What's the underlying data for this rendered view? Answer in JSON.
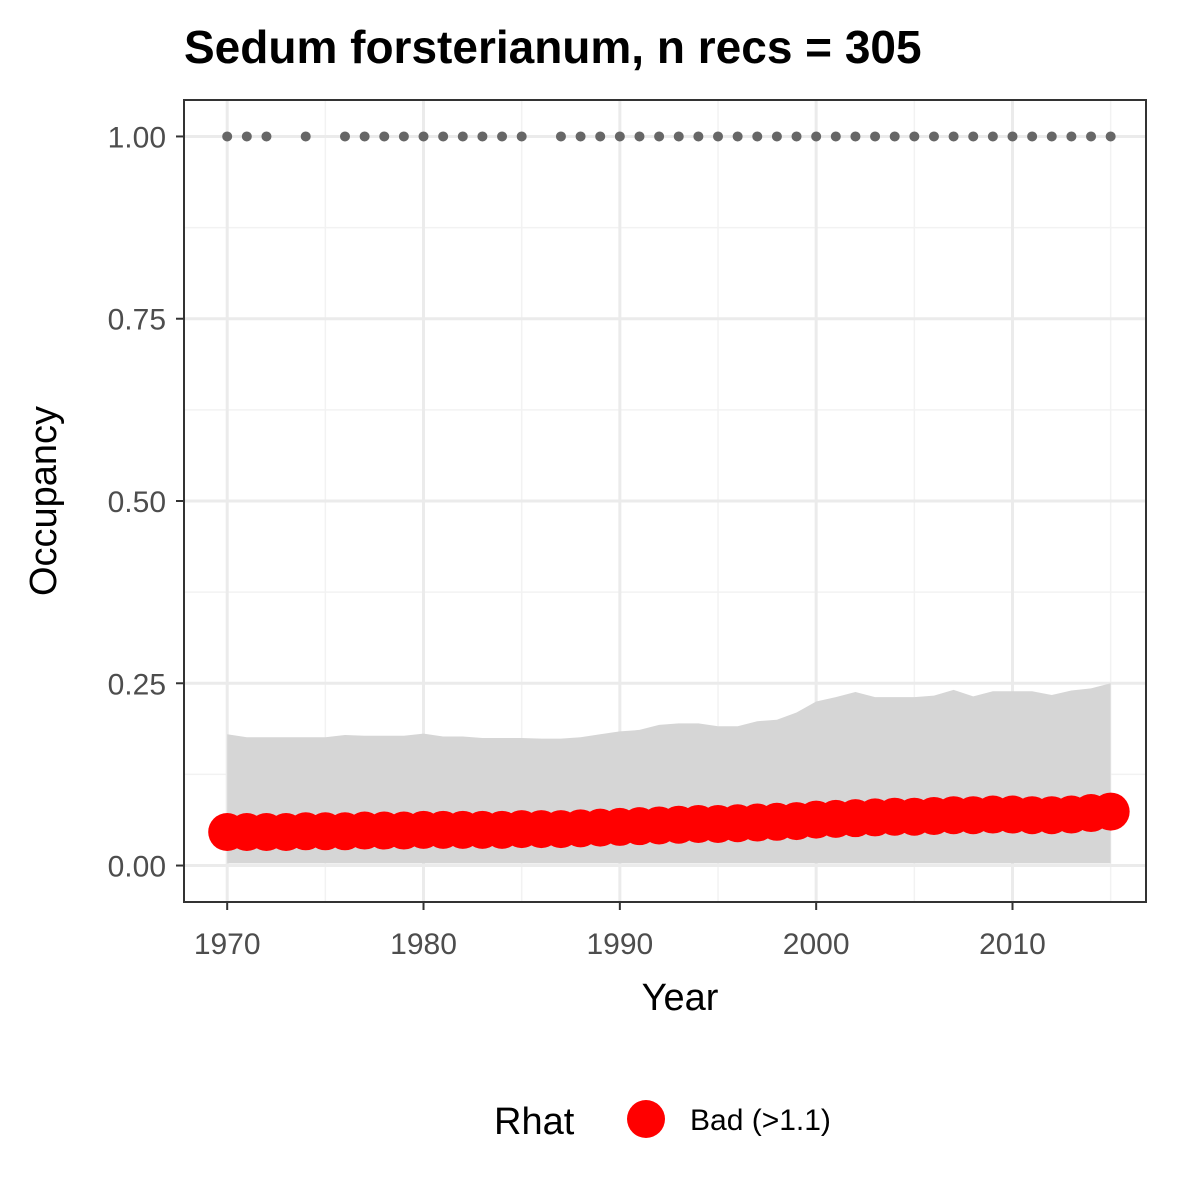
{
  "chart_data": {
    "type": "line",
    "title": "Sedum forsterianum, n recs = 305",
    "xlabel": "Year",
    "ylabel": "Occupancy",
    "xlim": [
      1967.8,
      2016.8
    ],
    "ylim": [
      -0.05,
      1.05
    ],
    "x_ticks": [
      1970,
      1980,
      1990,
      2000,
      2010
    ],
    "y_ticks": [
      0.0,
      0.25,
      0.5,
      0.75,
      1.0
    ],
    "y_tick_labels": [
      "0.00",
      "0.25",
      "0.50",
      "0.75",
      "1.00"
    ],
    "grid": true,
    "years": [
      1970,
      1971,
      1972,
      1973,
      1974,
      1975,
      1976,
      1977,
      1978,
      1979,
      1980,
      1981,
      1982,
      1983,
      1984,
      1985,
      1986,
      1987,
      1988,
      1989,
      1990,
      1991,
      1992,
      1993,
      1994,
      1995,
      1996,
      1997,
      1998,
      1999,
      2000,
      2001,
      2002,
      2003,
      2004,
      2005,
      2006,
      2007,
      2008,
      2009,
      2010,
      2011,
      2012,
      2013,
      2014,
      2015
    ],
    "series": [
      {
        "role": "occupancy_mean",
        "values": [
          0.046,
          0.046,
          0.046,
          0.046,
          0.047,
          0.047,
          0.047,
          0.048,
          0.048,
          0.048,
          0.049,
          0.049,
          0.049,
          0.049,
          0.049,
          0.05,
          0.05,
          0.05,
          0.051,
          0.052,
          0.053,
          0.054,
          0.055,
          0.056,
          0.057,
          0.057,
          0.058,
          0.059,
          0.06,
          0.061,
          0.063,
          0.064,
          0.065,
          0.066,
          0.067,
          0.067,
          0.068,
          0.069,
          0.069,
          0.07,
          0.07,
          0.069,
          0.069,
          0.07,
          0.072,
          0.074
        ],
        "color": "#ff0000"
      },
      {
        "role": "credible_interval_lower",
        "values": [
          0.003,
          0.003,
          0.003,
          0.003,
          0.003,
          0.003,
          0.003,
          0.003,
          0.003,
          0.003,
          0.003,
          0.003,
          0.003,
          0.003,
          0.003,
          0.003,
          0.003,
          0.003,
          0.003,
          0.003,
          0.003,
          0.003,
          0.003,
          0.003,
          0.003,
          0.003,
          0.003,
          0.003,
          0.003,
          0.003,
          0.003,
          0.003,
          0.003,
          0.003,
          0.003,
          0.003,
          0.003,
          0.003,
          0.003,
          0.003,
          0.003,
          0.003,
          0.003,
          0.003,
          0.003,
          0.003
        ],
        "color": "#d6d6d6"
      },
      {
        "role": "credible_interval_upper",
        "values": [
          0.18,
          0.176,
          0.176,
          0.176,
          0.176,
          0.176,
          0.179,
          0.178,
          0.178,
          0.178,
          0.181,
          0.177,
          0.177,
          0.175,
          0.175,
          0.175,
          0.174,
          0.174,
          0.176,
          0.18,
          0.184,
          0.186,
          0.193,
          0.195,
          0.195,
          0.191,
          0.191,
          0.198,
          0.2,
          0.21,
          0.225,
          0.231,
          0.238,
          0.231,
          0.231,
          0.231,
          0.233,
          0.241,
          0.232,
          0.239,
          0.239,
          0.239,
          0.234,
          0.24,
          0.243,
          0.25
        ],
        "color": "#d6d6d6"
      },
      {
        "role": "record_years",
        "years": [
          1970,
          1971,
          1972,
          1974,
          1976,
          1977,
          1978,
          1979,
          1980,
          1981,
          1982,
          1983,
          1984,
          1985,
          1987,
          1988,
          1989,
          1990,
          1991,
          1992,
          1993,
          1994,
          1995,
          1996,
          1997,
          1998,
          1999,
          2000,
          2001,
          2002,
          2003,
          2004,
          2005,
          2006,
          2007,
          2008,
          2009,
          2010,
          2011,
          2012,
          2013,
          2014,
          2015
        ],
        "value": 1.0,
        "color": "#666666"
      }
    ],
    "legend": {
      "position": "bottom",
      "title": "Rhat",
      "entries": [
        {
          "label": "Bad (>1.1)",
          "color": "#ff0000"
        }
      ]
    }
  }
}
